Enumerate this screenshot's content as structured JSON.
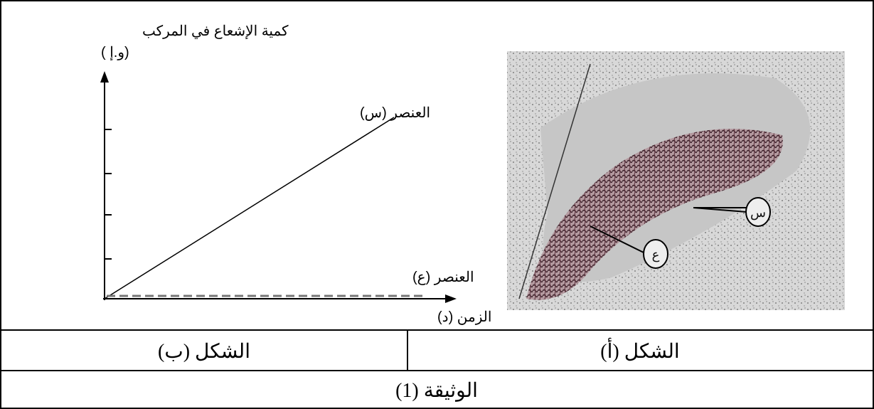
{
  "document": {
    "figure_b": {
      "y_axis_label": "كمية الإشعاع في المركب",
      "y_axis_unit": "(و.إ )",
      "line_s_label": "العنصر (س)",
      "line_e_label": "العنصر (ع)",
      "x_axis_label": "الزمن (د)"
    },
    "figure_a": {
      "label_s": "س",
      "label_e": "ع"
    },
    "captions": {
      "figure_b": "الشكل (ب)",
      "figure_a": "الشكل (أ)"
    },
    "footer": "الوثيقة (1)"
  }
}
